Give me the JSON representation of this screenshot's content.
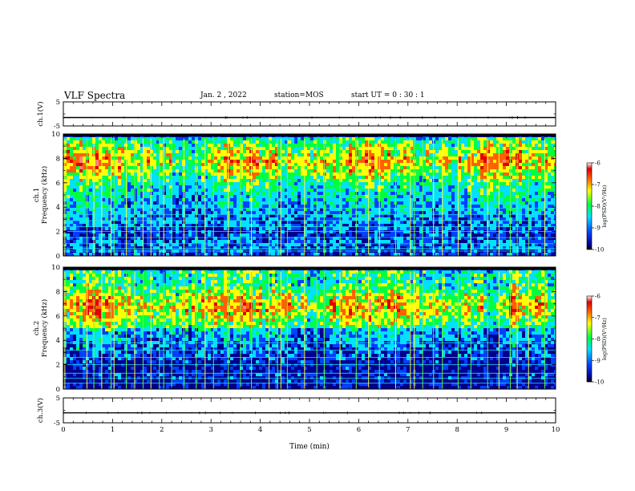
{
  "header": {
    "title": "VLF Spectra",
    "date": "Jan. 2 , 2022",
    "station": "station=MOS",
    "start_ut": "start  UT =   0 : 30 : 1"
  },
  "chart_data": [
    {
      "type": "line",
      "panel": "ch1-waveform",
      "ylabel": "ch.1(V)",
      "ylim": [
        -5,
        5
      ],
      "yticks": [
        "5",
        "-5"
      ],
      "trace_level": -1.5
    },
    {
      "type": "heatmap",
      "panel": "ch1-spectrogram",
      "ylabel": "ch.1\nFrequency (kHz)",
      "ylim": [
        0,
        10
      ],
      "yticks": [
        "0",
        "2",
        "4",
        "6",
        "8",
        "10"
      ],
      "xlim": [
        0,
        10
      ],
      "dominant_band_khz": [
        6,
        9.5
      ],
      "spike_times_min": [
        0.03,
        0.48,
        0.62,
        0.78,
        0.97,
        1.03,
        1.28,
        1.45,
        1.62,
        1.78,
        1.95,
        2.04,
        2.2,
        2.45,
        2.7,
        2.88,
        3.05,
        3.35,
        3.6,
        3.82,
        4.18,
        4.35,
        4.42,
        4.55,
        4.9,
        5.15,
        5.3,
        5.62,
        5.95,
        6.2,
        6.42,
        6.75,
        7.05,
        7.13,
        7.3,
        7.52,
        7.7,
        8.02,
        8.28,
        8.62,
        8.85,
        9.08,
        9.22,
        9.45,
        9.78
      ],
      "line_frequencies_khz": [
        0.4,
        0.6,
        1.0,
        1.5,
        2.0,
        2.4,
        2.9,
        3.4,
        3.9
      ],
      "colorbar": {
        "label": "log(PSD)(V²/Hz)",
        "ticks": [
          "-6",
          "-7",
          "-8",
          "-9",
          "-10"
        ],
        "range": [
          -10,
          -6
        ]
      }
    },
    {
      "type": "heatmap",
      "panel": "ch2-spectrogram",
      "ylabel": "ch.2\nFrequency (kHz)",
      "ylim": [
        0,
        10
      ],
      "yticks": [
        "0",
        "2",
        "4",
        "6",
        "8",
        "10"
      ],
      "xlim": [
        0,
        10
      ],
      "dominant_band_khz": [
        5,
        8.5
      ],
      "spike_times_min": [
        0.03,
        0.48,
        0.62,
        0.78,
        0.97,
        1.03,
        1.28,
        1.45,
        1.62,
        1.78,
        1.95,
        2.04,
        2.2,
        2.45,
        2.7,
        2.88,
        3.05,
        3.35,
        3.6,
        3.82,
        4.18,
        4.35,
        4.42,
        4.55,
        4.9,
        5.15,
        5.3,
        5.62,
        5.95,
        6.2,
        6.42,
        6.75,
        7.05,
        7.13,
        7.3,
        7.52,
        7.7,
        8.02,
        8.28,
        8.62,
        8.85,
        9.08,
        9.22,
        9.45,
        9.78
      ],
      "line_frequencies_khz": [
        0.5,
        0.9,
        1.3,
        2.0,
        2.6,
        3.2,
        3.8
      ],
      "colorbar": {
        "label": "log(PSD)(V²/Hz)",
        "ticks": [
          "-6",
          "-7",
          "-8",
          "-9",
          "-10"
        ],
        "range": [
          -10,
          -6
        ]
      }
    },
    {
      "type": "line",
      "panel": "ch3-waveform",
      "ylabel": "ch.3(V)",
      "ylim": [
        -5,
        5
      ],
      "yticks": [
        "5",
        "-5"
      ],
      "trace_level": -1.0
    }
  ],
  "x_axis": {
    "label": "Time (min)",
    "ticks": [
      "0",
      "1",
      "2",
      "3",
      "4",
      "5",
      "6",
      "7",
      "8",
      "9",
      "10"
    ],
    "range": [
      0,
      10
    ]
  }
}
